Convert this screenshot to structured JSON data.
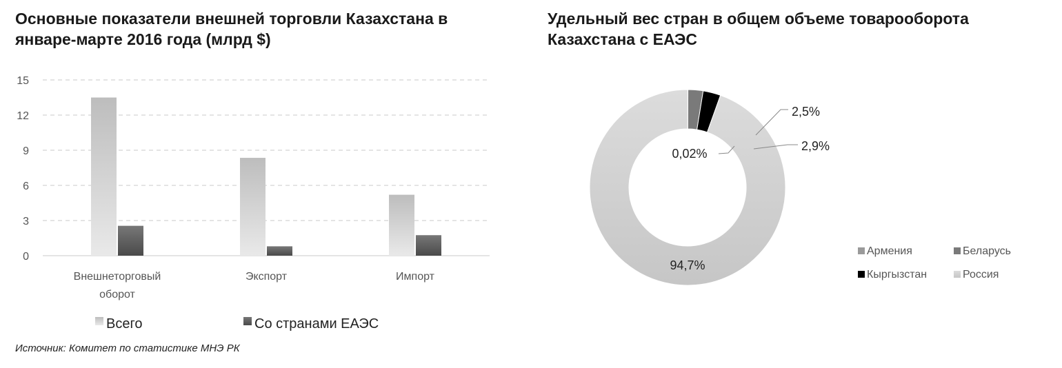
{
  "source": "Источник: Комитет по статистике МНЭ РК",
  "chart_data": [
    {
      "type": "bar",
      "title": "Основные показатели внешней торговли Казахстана в январе-марте 2016 года (млрд $)",
      "categories": [
        [
          "Внешнеторговый",
          "оборот"
        ],
        [
          "Экспорт"
        ],
        [
          "Импорт"
        ]
      ],
      "series": [
        {
          "name": "Всего",
          "values": [
            13.5,
            8.35,
            5.2
          ],
          "color": "#c8c8c8"
        },
        {
          "name": "Со странами ЕАЭС",
          "values": [
            2.55,
            0.8,
            1.75
          ],
          "color": "#6e6e6e"
        }
      ],
      "yticks": [
        0,
        3,
        6,
        9,
        12,
        15
      ],
      "ylim": [
        0,
        15
      ],
      "grid": true,
      "legend_position": "bottom"
    },
    {
      "type": "pie",
      "subtype": "donut",
      "title": "Удельный вес стран в общем объеме товарооборота Казахстана с ЕАЭС",
      "slices": [
        {
          "name": "Армения",
          "value": 0.02,
          "label": "0,02%",
          "color": "#9a9a9a"
        },
        {
          "name": "Беларусь",
          "value": 2.5,
          "label": "2,5%",
          "color": "#7a7a7a"
        },
        {
          "name": "Кыргызстан",
          "value": 2.9,
          "label": "2,9%",
          "color": "#000000"
        },
        {
          "name": "Россия",
          "value": 94.7,
          "label": "94,7%",
          "color": "#d2d2d2"
        }
      ],
      "legend_position": "bottom-right"
    }
  ]
}
